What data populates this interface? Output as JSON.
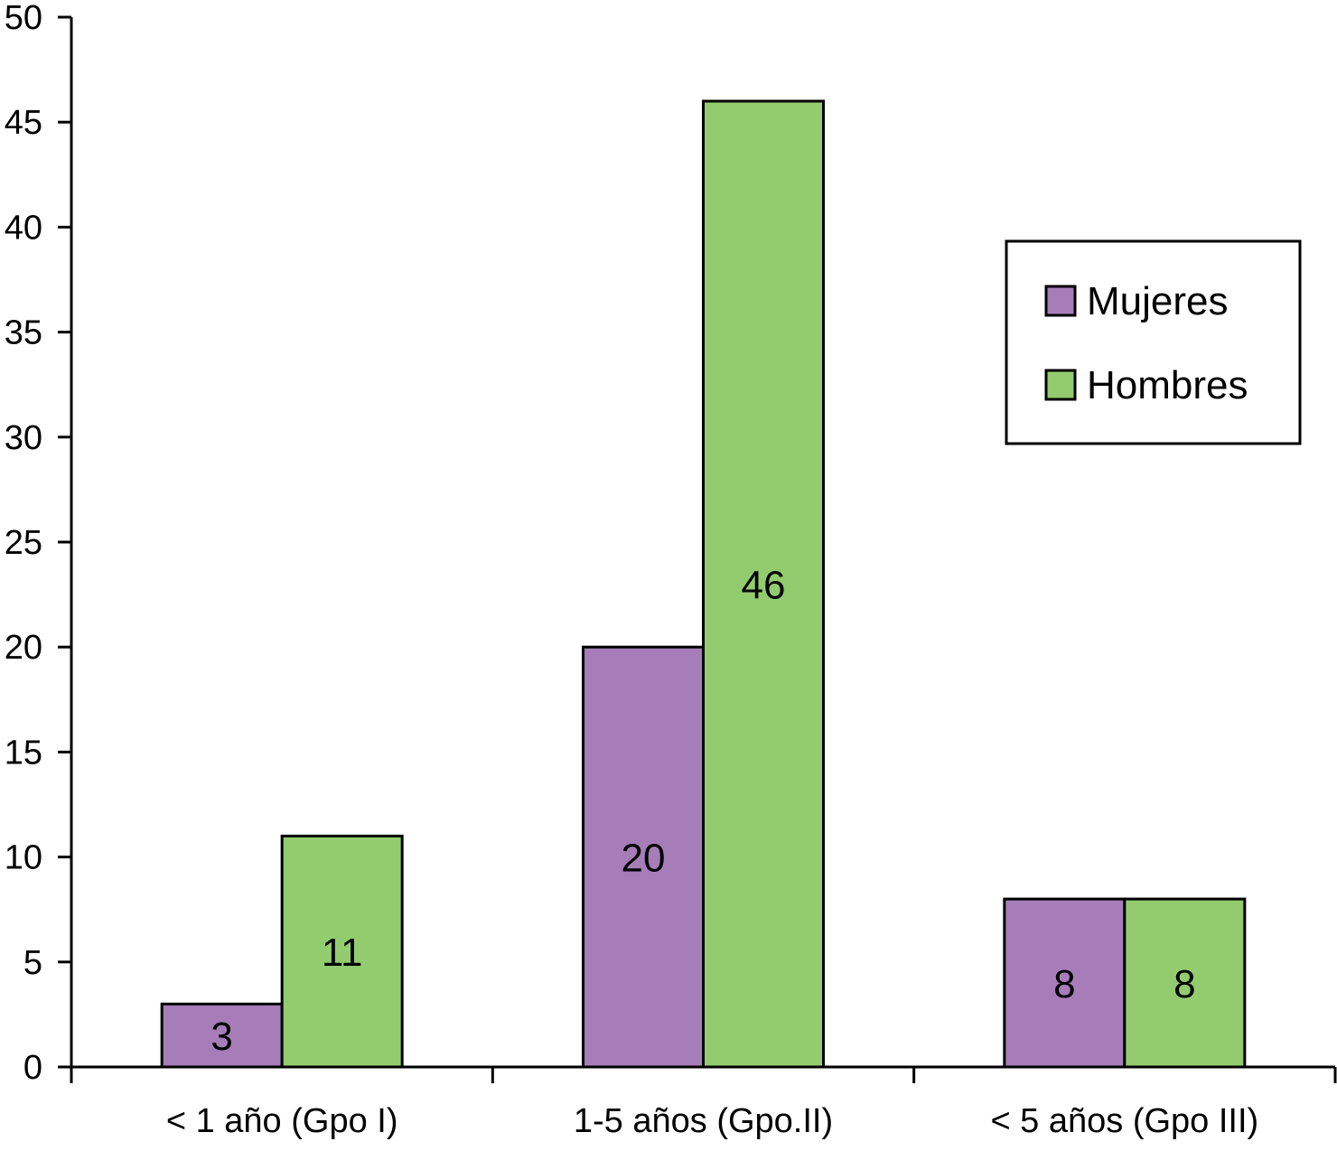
{
  "chart_data": {
    "type": "bar",
    "categories": [
      "< 1 año (Gpo I)",
      "1-5 años (Gpo.II)",
      "< 5 años (Gpo III)"
    ],
    "series": [
      {
        "name": "Mujeres",
        "values": [
          3,
          20,
          8
        ],
        "color": "#a67db8"
      },
      {
        "name": "Hombres",
        "values": [
          11,
          46,
          8
        ],
        "color": "#92cc6f"
      }
    ],
    "ylim": [
      0,
      50
    ],
    "yticks": [
      0,
      5,
      10,
      15,
      20,
      25,
      30,
      35,
      40,
      45,
      50
    ],
    "title": "",
    "xlabel": "",
    "ylabel": "",
    "grid": false,
    "legend_position": "top-right"
  }
}
